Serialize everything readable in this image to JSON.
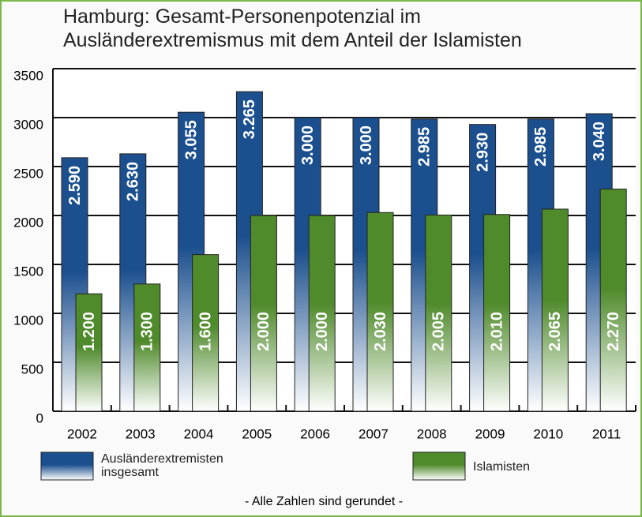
{
  "chart_data": {
    "type": "bar",
    "title": "Hamburg: Gesamt-Personenpotenzial im Ausländerextremismus mit dem Anteil der Islamisten",
    "categories": [
      "2002",
      "2003",
      "2004",
      "2005",
      "2006",
      "2007",
      "2008",
      "2009",
      "2010",
      "2011"
    ],
    "series": [
      {
        "name": "Ausländerextremisten insgesamt",
        "color": "#1b4f8e",
        "values": [
          2590,
          2630,
          3055,
          3265,
          3000,
          3000,
          2985,
          2930,
          2985,
          3040
        ],
        "value_labels": [
          "2.590",
          "2.630",
          "3.055",
          "3.265",
          "3.000",
          "3.000",
          "2.985",
          "2.930",
          "2.985",
          "3.040"
        ]
      },
      {
        "name": "Islamisten",
        "color": "#4f8a2b",
        "values": [
          1200,
          1300,
          1600,
          2000,
          2000,
          2030,
          2005,
          2010,
          2065,
          2270
        ],
        "value_labels": [
          "1.200",
          "1.300",
          "1.600",
          "2.000",
          "2.000",
          "2.030",
          "2.005",
          "2.010",
          "2.065",
          "2.270"
        ]
      }
    ],
    "ylim": [
      0,
      3500
    ],
    "yticks": [
      0,
      500,
      1000,
      1500,
      2000,
      2500,
      3000,
      3500
    ],
    "grid": true,
    "note": "- Alle Zahlen sind gerundet -"
  }
}
